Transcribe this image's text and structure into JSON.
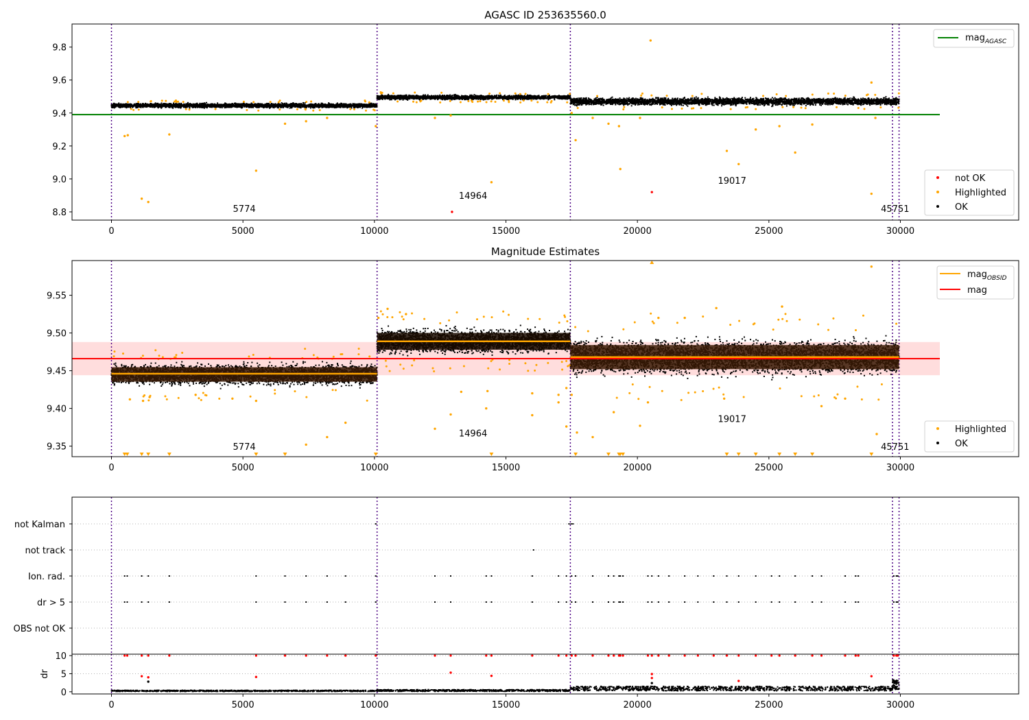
{
  "figure": {
    "colors": {
      "ok": "#000000",
      "highlighted": "#ffa500",
      "not_ok": "#ff0000",
      "mag_agasc": "#008000",
      "mag_obsid": "#ffa500",
      "mag": "#ff0000",
      "band": "#ffdddd",
      "obs_boundary": "#4b0082",
      "row_grid": "#b0b0b0"
    }
  },
  "chart_data": [
    {
      "type": "scatter",
      "title": "AGASC ID 253635560.0",
      "xlim": [
        -1500,
        34500
      ],
      "ylim": [
        8.75,
        9.94
      ],
      "x_ticks": [
        0,
        5000,
        10000,
        15000,
        20000,
        25000,
        30000
      ],
      "y_ticks": [
        8.8,
        9.0,
        9.2,
        9.4,
        9.6,
        9.8
      ],
      "y_tick_labels": [
        "8.8",
        "9.0",
        "9.2",
        "9.4",
        "9.6",
        "9.8"
      ],
      "hline": {
        "name": "mag",
        "sub": "AGASC",
        "y": 9.39,
        "x": [
          -1500,
          31500
        ]
      },
      "segments": [
        {
          "x": [
            0,
            10100
          ],
          "center": 9.445,
          "spread": 0.012
        },
        {
          "x": [
            10100,
            17450
          ],
          "center": 9.495,
          "spread": 0.012
        },
        {
          "x": [
            17450,
            29950
          ],
          "center": 9.47,
          "spread": 0.02
        }
      ],
      "obs_boundaries": [
        0,
        10100,
        17450,
        29700,
        29950
      ],
      "obs_labels": [
        {
          "text": "5774",
          "x": 5050,
          "y": 8.8
        },
        {
          "text": "14964",
          "x": 13750,
          "y": 8.88
        },
        {
          "text": "19017",
          "x": 23600,
          "y": 8.97
        },
        {
          "text": "45751",
          "x": 29800,
          "y": 8.8
        }
      ],
      "highlighted_points": [
        [
          500,
          9.26
        ],
        [
          620,
          9.265
        ],
        [
          1150,
          8.88
        ],
        [
          1400,
          8.86
        ],
        [
          2200,
          9.27
        ],
        [
          5500,
          9.05
        ],
        [
          6600,
          9.335
        ],
        [
          7400,
          9.35
        ],
        [
          8200,
          9.37
        ],
        [
          10050,
          9.32
        ],
        [
          12300,
          9.37
        ],
        [
          12900,
          9.385
        ],
        [
          14450,
          8.98
        ],
        [
          17500,
          9.4
        ],
        [
          17650,
          9.235
        ],
        [
          18300,
          9.37
        ],
        [
          18900,
          9.335
        ],
        [
          19300,
          9.32
        ],
        [
          19350,
          9.06
        ],
        [
          20500,
          9.84
        ],
        [
          20100,
          9.37
        ],
        [
          23400,
          9.17
        ],
        [
          23850,
          9.09
        ],
        [
          24500,
          9.3
        ],
        [
          25400,
          9.32
        ],
        [
          26000,
          9.16
        ],
        [
          26650,
          9.33
        ],
        [
          28900,
          8.91
        ],
        [
          28900,
          9.585
        ],
        [
          29050,
          9.37
        ]
      ],
      "not_ok_points": [
        [
          12950,
          8.8
        ],
        [
          20550,
          8.92
        ]
      ],
      "legend_line": [
        {
          "label": "mag",
          "sub": "AGASC"
        }
      ],
      "legend_points": [
        "not OK",
        "Highlighted",
        "OK"
      ]
    },
    {
      "type": "scatter",
      "title": "Magnitude Estimates",
      "xlim": [
        -1500,
        34500
      ],
      "ylim": [
        9.336,
        9.596
      ],
      "x_ticks": [
        0,
        5000,
        10000,
        15000,
        20000,
        25000,
        30000
      ],
      "y_ticks": [
        9.35,
        9.4,
        9.45,
        9.5,
        9.55
      ],
      "y_tick_labels": [
        "9.35",
        "9.40",
        "9.45",
        "9.50",
        "9.55"
      ],
      "mag_line": {
        "name": "mag",
        "y": 9.466,
        "x": [
          -1500,
          31500
        ]
      },
      "band": {
        "y": [
          9.444,
          9.488
        ],
        "x": [
          -1500,
          31500
        ]
      },
      "obsid_mags": [
        {
          "x": [
            0,
            10100
          ],
          "y": 9.446
        },
        {
          "x": [
            10100,
            17450
          ],
          "y": 9.489
        },
        {
          "x": [
            17450,
            29950
          ],
          "y": 9.468
        }
      ],
      "segments": [
        {
          "x": [
            0,
            10100
          ],
          "center": 9.445,
          "spread": 0.012
        },
        {
          "x": [
            10100,
            17450
          ],
          "center": 9.489,
          "spread": 0.014
        },
        {
          "x": [
            17450,
            29950
          ],
          "center": 9.468,
          "spread": 0.02
        }
      ],
      "obs_boundaries": [
        0,
        10100,
        17450,
        29700,
        29950
      ],
      "obs_labels": [
        {
          "text": "5774",
          "x": 5050,
          "y": 9.345
        },
        {
          "text": "14964",
          "x": 13750,
          "y": 9.363
        },
        {
          "text": "19017",
          "x": 23600,
          "y": 9.382
        },
        {
          "text": "45751",
          "x": 29800,
          "y": 9.345
        }
      ],
      "highlighted_points": [
        [
          700,
          9.412
        ],
        [
          1200,
          9.41
        ],
        [
          1450,
          9.415
        ],
        [
          3200,
          9.418
        ],
        [
          4600,
          9.413
        ],
        [
          5500,
          9.41
        ],
        [
          7400,
          9.352
        ],
        [
          8200,
          9.362
        ],
        [
          8900,
          9.381
        ],
        [
          10150,
          9.52
        ],
        [
          10500,
          9.532
        ],
        [
          11200,
          9.525
        ],
        [
          12300,
          9.373
        ],
        [
          12900,
          9.392
        ],
        [
          13300,
          9.422
        ],
        [
          14250,
          9.4
        ],
        [
          14300,
          9.423
        ],
        [
          16000,
          9.391
        ],
        [
          16000,
          9.42
        ],
        [
          17000,
          9.408
        ],
        [
          17000,
          9.418
        ],
        [
          17300,
          9.427
        ],
        [
          17300,
          9.376
        ],
        [
          17500,
          9.418
        ],
        [
          17700,
          9.368
        ],
        [
          18300,
          9.362
        ],
        [
          19100,
          9.395
        ],
        [
          20100,
          9.377
        ],
        [
          20400,
          9.408
        ],
        [
          20800,
          9.52
        ],
        [
          21800,
          9.52
        ],
        [
          23000,
          9.533
        ],
        [
          23300,
          9.413
        ],
        [
          25500,
          9.535
        ],
        [
          27000,
          9.403
        ],
        [
          27900,
          9.413
        ],
        [
          28900,
          9.588
        ],
        [
          29100,
          9.366
        ]
      ],
      "clipped_markers": [
        500,
        600,
        1150,
        1400,
        2200,
        5500,
        6600,
        10050,
        14450,
        17650,
        18900,
        19300,
        19350,
        19450,
        23400,
        23850,
        24500,
        25400,
        26000,
        26650,
        28900
      ],
      "top_marker": 20550,
      "legend_line": [
        {
          "label": "mag",
          "sub": "OBSID"
        },
        {
          "label": "mag",
          "sub": ""
        }
      ],
      "legend_points": [
        "Highlighted",
        "OK"
      ]
    },
    {
      "type": "scatter",
      "xlim": [
        -1500,
        34500
      ],
      "rows": [
        "not Kalman",
        "not track",
        "Ion. rad.",
        "dr > 5",
        "OBS not OK"
      ],
      "obs_boundaries": [
        0,
        10100,
        17450,
        29700,
        29950
      ],
      "flag_events": {
        "not Kalman": [
          10050,
          17400,
          17480,
          17550
        ],
        "not track": [
          16050
        ],
        "Ion. rad.": [
          500,
          600,
          1150,
          1400,
          2200,
          5500,
          6600,
          7400,
          8200,
          8900,
          10050,
          12300,
          12900,
          14250,
          14450,
          16000,
          17000,
          17300,
          17500,
          17650,
          18300,
          18900,
          19100,
          19300,
          19350,
          19450,
          20400,
          20550,
          20800,
          21200,
          21800,
          22300,
          22900,
          23400,
          23850,
          24500,
          25100,
          25400,
          26000,
          26650,
          27000,
          27900,
          28300,
          28400,
          29750,
          29850,
          29900
        ],
        "dr > 5": [
          500,
          600,
          1150,
          1400,
          2200,
          5500,
          6600,
          7400,
          8200,
          8900,
          10050,
          12300,
          12900,
          14250,
          14450,
          16000,
          17000,
          17300,
          17500,
          17650,
          18300,
          18900,
          19100,
          19300,
          19350,
          19450,
          20400,
          20550,
          20800,
          21200,
          21800,
          22300,
          22900,
          23400,
          23850,
          24500,
          25100,
          25400,
          26000,
          26650,
          27000,
          27900,
          28300,
          28400,
          29750,
          29850,
          29900
        ],
        "OBS not OK": []
      }
    },
    {
      "type": "scatter",
      "ylabel": "dr",
      "xlim": [
        -1500,
        34500
      ],
      "ylim": [
        -0.6,
        10.4
      ],
      "x_ticks": [
        0,
        5000,
        10000,
        15000,
        20000,
        25000,
        30000
      ],
      "y_ticks": [
        0,
        5,
        10
      ],
      "obs_boundaries": [
        0,
        10100,
        17450,
        29700,
        29950
      ],
      "dr_clip_points": [
        500,
        600,
        1150,
        1400,
        2200,
        5500,
        6600,
        7400,
        8200,
        8900,
        10050,
        12300,
        12900,
        14250,
        14450,
        16000,
        17000,
        17300,
        17500,
        17650,
        18300,
        18900,
        19100,
        19300,
        19350,
        19450,
        20400,
        20550,
        20800,
        21200,
        21800,
        22300,
        22900,
        23400,
        23850,
        24500,
        25100,
        25400,
        26000,
        26650,
        27000,
        27900,
        28300,
        28400,
        29750,
        29850,
        29900
      ],
      "dr_mid_points": [
        [
          1150,
          4.3
        ],
        [
          1400,
          4.0
        ],
        [
          5500,
          4.1
        ],
        [
          12900,
          5.3
        ],
        [
          14450,
          4.4
        ],
        [
          20550,
          4.9
        ],
        [
          20550,
          3.8
        ],
        [
          23850,
          3.0
        ],
        [
          28900,
          4.3
        ]
      ],
      "black_mid_points": [
        [
          1400,
          2.8
        ],
        [
          20550,
          2.4
        ]
      ],
      "segments": [
        {
          "x": [
            0,
            10100
          ],
          "level": 0.25
        },
        {
          "x": [
            10100,
            17450
          ],
          "level": 0.35
        },
        {
          "x": [
            17450,
            29700
          ],
          "level": 0.9
        },
        {
          "x": [
            29700,
            29950
          ],
          "level": 2.0
        }
      ]
    }
  ]
}
